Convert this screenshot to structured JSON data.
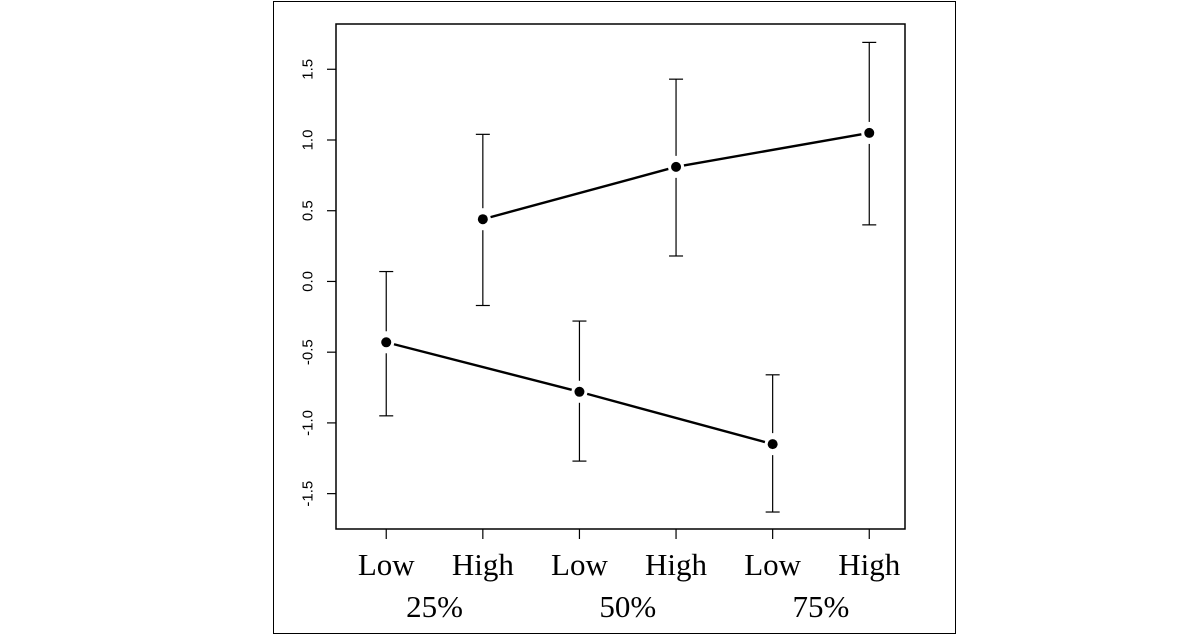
{
  "chart_data": {
    "type": "line",
    "title": "",
    "xlabel": "",
    "ylabel": "",
    "x": [
      1,
      2,
      3,
      4,
      5,
      6
    ],
    "x_tick_labels": [
      "Low",
      "High",
      "Low",
      "High",
      "Low",
      "High"
    ],
    "group_labels": [
      {
        "label": "25%",
        "x": 1.5
      },
      {
        "label": "50%",
        "x": 3.5
      },
      {
        "label": "75%",
        "x": 5.5
      }
    ],
    "ylim": [
      -1.75,
      1.82
    ],
    "xlim": [
      0.48,
      6.37
    ],
    "y_ticks": [
      -1.5,
      -1.0,
      -0.5,
      0.0,
      0.5,
      1.0,
      1.5
    ],
    "y_tick_labels": [
      "-1.5",
      "-1.0",
      "-0.5",
      "0.0",
      "0.5",
      "1.0",
      "1.5"
    ],
    "grid": false,
    "legend": "none",
    "series": [
      {
        "x": [
          1,
          3,
          5
        ],
        "values": [
          -0.43,
          -0.78,
          -1.15
        ],
        "lower": [
          -0.95,
          -1.27,
          -1.63
        ],
        "upper": [
          0.07,
          -0.28,
          -0.66
        ]
      },
      {
        "x": [
          2,
          4,
          6
        ],
        "values": [
          0.44,
          0.81,
          1.05
        ],
        "lower": [
          -0.17,
          0.18,
          0.4
        ],
        "upper": [
          1.04,
          1.43,
          1.69
        ]
      }
    ],
    "colors": {
      "line": "#000000",
      "point": "#000000"
    }
  }
}
